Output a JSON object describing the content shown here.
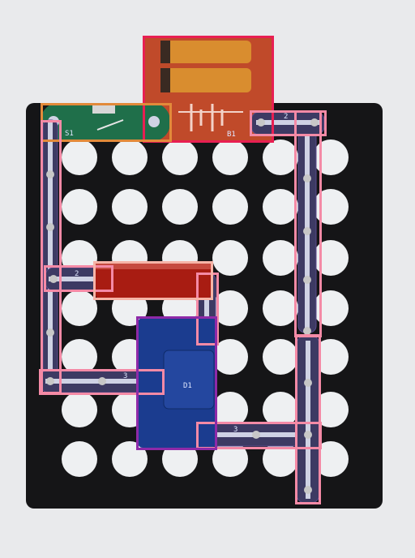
{
  "scene": {
    "description_colors": {
      "background": "#e9eaec",
      "board": "#151517",
      "hole": "#eef0f2",
      "wire_strip": "#cfd2e4",
      "wire_edge": "#5a4b8e",
      "battery_body": "#c04a2a",
      "battery_cells": "#d98d2f",
      "switch_board": "#1f6f4a",
      "resistor_body": "#a81c12",
      "part_blue": "#1b3c8f"
    },
    "annotation_colors": {
      "wire_box": "#f48aa6",
      "battery_box": "#e81f52",
      "switch_box": "#e28a3a",
      "resistor_box": "#f6b4a7",
      "blue_part_box": "#8e2aa8"
    }
  },
  "labels": {
    "switch": "S1",
    "battery": "B1",
    "wire_top_right": "2",
    "wire_left": "2",
    "wire_h_mid": "2",
    "wire_bottom_left": "3",
    "wire_bottom_right": "3",
    "blue_part": "D1"
  },
  "icons": {
    "battery": "battery-icon",
    "switch": "switch-icon",
    "resistor": "resistor-icon"
  }
}
